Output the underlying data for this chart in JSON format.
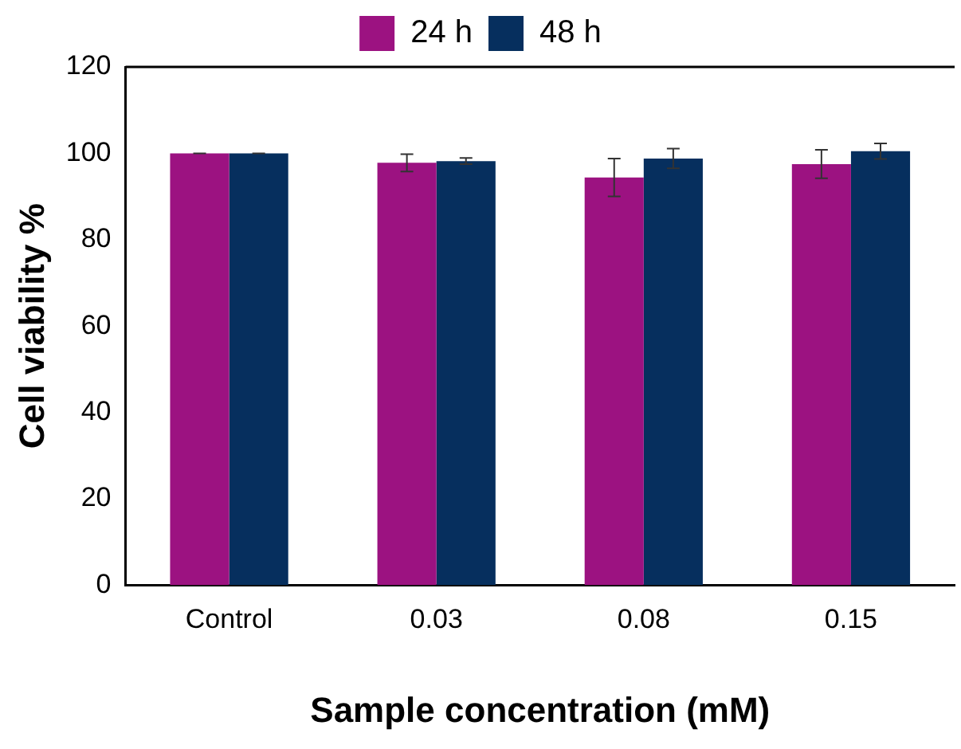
{
  "chart_data": {
    "type": "bar",
    "xlabel": "Sample concentration (mM)",
    "ylabel": "Cell viability %",
    "categories": [
      "Control",
      "0.03",
      "0.08",
      "0.15"
    ],
    "series": [
      {
        "name": "24 h",
        "color": "#9c1281",
        "values": [
          100,
          97.8,
          94.4,
          97.5
        ],
        "errors": [
          0,
          2,
          4.4,
          3.3
        ]
      },
      {
        "name": "48 h",
        "color": "#062f5e",
        "values": [
          100,
          98.2,
          98.8,
          100.5
        ],
        "errors": [
          0,
          0.7,
          2.3,
          1.8
        ]
      }
    ],
    "ylim": [
      0,
      120
    ],
    "yticks": [
      0,
      20,
      40,
      60,
      80,
      100,
      120
    ],
    "grid": false,
    "legend": "top",
    "ref_lines": [
      {
        "axis": "y",
        "value": 120,
        "label": null
      }
    ]
  }
}
